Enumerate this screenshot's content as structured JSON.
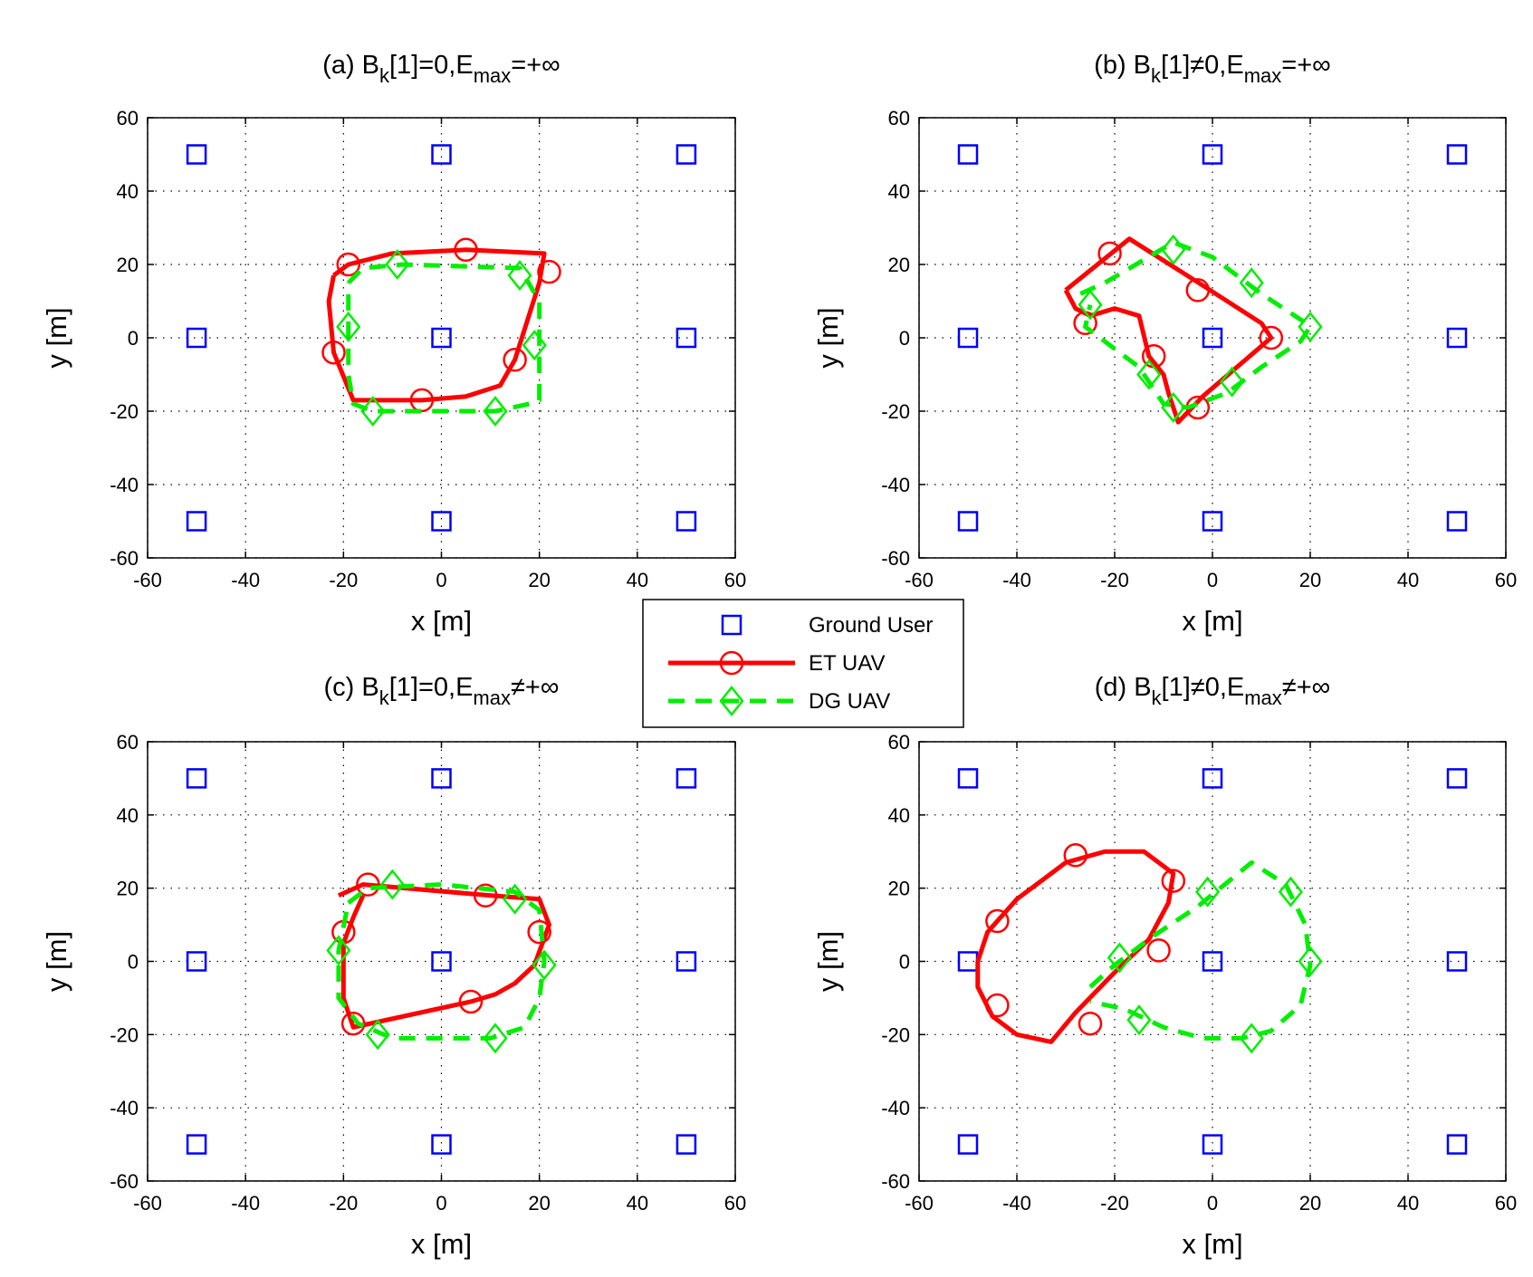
{
  "chart_data": [
    {
      "type": "line",
      "title": [
        "(a) B",
        "k",
        "[1]=0,E",
        "max",
        "=+∞"
      ],
      "xlabel": "x [m]",
      "ylabel": "y [m]",
      "xlim": [
        -60,
        60
      ],
      "ylim": [
        -60,
        60
      ],
      "xticks": [
        -60,
        -40,
        -20,
        0,
        20,
        40,
        60
      ],
      "yticks": [
        -60,
        -40,
        -20,
        0,
        20,
        40,
        60
      ],
      "grid": true,
      "series": [
        {
          "color": "#0000ff",
          "marker": "square",
          "x": [
            -50,
            0,
            50,
            -50,
            0,
            50,
            -50,
            0,
            50
          ],
          "y": [
            50,
            50,
            50,
            0,
            0,
            0,
            -50,
            -50,
            -50
          ]
        },
        {
          "color": "#ff0000",
          "line": "solid",
          "marker": "circle",
          "x": [
            -22,
            -19,
            -10,
            5,
            21,
            20,
            15,
            12,
            5,
            -4,
            -18,
            -22,
            -23,
            -22
          ],
          "y": [
            17,
            20,
            23,
            24,
            23,
            15,
            -6,
            -13,
            -16,
            -17,
            -17,
            -4,
            10,
            17
          ],
          "marker_x": [
            -19,
            5,
            22,
            15,
            -4,
            -22
          ],
          "marker_y": [
            20,
            24,
            18,
            -6,
            -17,
            -4
          ]
        },
        {
          "color": "#00ee00",
          "line": "dashed",
          "marker": "diamond",
          "x": [
            -19,
            -16,
            -8,
            16,
            20,
            20,
            20,
            18,
            11,
            -14,
            -18,
            -19,
            -19,
            -19
          ],
          "y": [
            15,
            19,
            20,
            19,
            10,
            -3,
            -17,
            -18,
            -20,
            -20,
            -18,
            -10,
            3,
            15
          ],
          "marker_x": [
            -19,
            -9,
            16,
            19,
            11,
            -14
          ],
          "marker_y": [
            3,
            20,
            17,
            -2,
            -20,
            -20
          ]
        }
      ]
    },
    {
      "type": "line",
      "title": [
        "(b) B",
        "k",
        "[1]≠0,E",
        "max",
        "=+∞"
      ],
      "xlabel": "x [m]",
      "ylabel": "y [m]",
      "xlim": [
        -60,
        60
      ],
      "ylim": [
        -60,
        60
      ],
      "xticks": [
        -60,
        -40,
        -20,
        0,
        20,
        40,
        60
      ],
      "yticks": [
        -60,
        -40,
        -20,
        0,
        20,
        40,
        60
      ],
      "grid": true,
      "series": [
        {
          "color": "#0000ff",
          "marker": "square",
          "x": [
            -50,
            0,
            50,
            -50,
            0,
            50,
            -50,
            0,
            50
          ],
          "y": [
            50,
            50,
            50,
            0,
            0,
            0,
            -50,
            -50,
            -50
          ]
        },
        {
          "color": "#ff0000",
          "line": "solid",
          "marker": "circle",
          "x": [
            -30,
            -17,
            -4,
            10,
            12,
            5,
            -2,
            -7,
            -9,
            -10,
            -13,
            -15,
            -20,
            -25,
            -28,
            -30
          ],
          "y": [
            13,
            27,
            16,
            4,
            0,
            -8,
            -16,
            -23,
            -15,
            -10,
            -5,
            6,
            8,
            6,
            8,
            13
          ],
          "marker_x": [
            -21,
            -3,
            12,
            -3,
            -12,
            -26
          ],
          "marker_y": [
            23,
            13,
            0,
            -19,
            -5,
            4
          ]
        },
        {
          "color": "#00ee00",
          "line": "dashed",
          "marker": "diamond",
          "x": [
            -27,
            -22,
            -8,
            0,
            10,
            18,
            20,
            18,
            10,
            3,
            -5,
            -10,
            -15,
            -22,
            -26,
            -25
          ],
          "y": [
            12,
            15,
            26,
            22,
            12,
            5,
            3,
            -1,
            -8,
            -15,
            -19,
            -18,
            -8,
            -1,
            3,
            9
          ],
          "marker_x": [
            -8,
            8,
            20,
            4,
            -8,
            -13,
            -25
          ],
          "marker_y": [
            24,
            15,
            3,
            -12,
            -19,
            -10,
            9
          ]
        }
      ]
    },
    {
      "type": "line",
      "title": [
        "(c) B",
        "k",
        "[1]=0,E",
        "max",
        "≠+∞"
      ],
      "xlabel": "x [m]",
      "ylabel": "y [m]",
      "xlim": [
        -60,
        60
      ],
      "ylim": [
        -60,
        60
      ],
      "xticks": [
        -60,
        -40,
        -20,
        0,
        20,
        40,
        60
      ],
      "yticks": [
        -60,
        -40,
        -20,
        0,
        20,
        40,
        60
      ],
      "grid": true,
      "series": [
        {
          "color": "#0000ff",
          "marker": "square",
          "x": [
            -50,
            0,
            50,
            -50,
            0,
            50,
            -50,
            0,
            50
          ],
          "y": [
            50,
            50,
            50,
            0,
            0,
            0,
            -50,
            -50,
            -50
          ]
        },
        {
          "color": "#ff0000",
          "line": "solid",
          "marker": "circle",
          "x": [
            -21,
            -16,
            10,
            20,
            22,
            19,
            15,
            11,
            6,
            -18,
            -20,
            -20,
            -18,
            -16
          ],
          "y": [
            18,
            21,
            18,
            17,
            10,
            -1,
            -6,
            -9,
            -11,
            -18,
            -10,
            5,
            12,
            18
          ],
          "marker_x": [
            -15,
            9,
            20,
            6,
            -18,
            -20
          ],
          "marker_y": [
            21,
            18,
            8,
            -11,
            -17,
            8
          ]
        },
        {
          "color": "#00ee00",
          "line": "dashed",
          "marker": "diamond",
          "x": [
            -19,
            -15,
            0,
            15,
            20,
            21,
            20,
            17,
            10,
            -10,
            -17,
            -21,
            -21,
            -19
          ],
          "y": [
            16,
            20,
            21,
            19,
            14,
            0,
            -10,
            -18,
            -21,
            -21,
            -17,
            -10,
            3,
            16
          ],
          "marker_x": [
            -10,
            15,
            21,
            11,
            -13,
            -21
          ],
          "marker_y": [
            21,
            17,
            -1,
            -21,
            -20,
            3
          ]
        }
      ]
    },
    {
      "type": "line",
      "title": [
        "(d) B",
        "k",
        "[1]≠0,E",
        "max",
        "≠+∞"
      ],
      "xlabel": "x [m]",
      "ylabel": "y [m]",
      "xlim": [
        -60,
        60
      ],
      "ylim": [
        -60,
        60
      ],
      "xticks": [
        -60,
        -40,
        -20,
        0,
        20,
        40,
        60
      ],
      "yticks": [
        -60,
        -40,
        -20,
        0,
        20,
        40,
        60
      ],
      "grid": true,
      "series": [
        {
          "color": "#0000ff",
          "marker": "square",
          "x": [
            -50,
            0,
            50,
            -50,
            0,
            50,
            -50,
            0,
            50
          ],
          "y": [
            50,
            50,
            50,
            0,
            0,
            0,
            -50,
            -50,
            -50
          ]
        },
        {
          "color": "#ff0000",
          "line": "solid",
          "marker": "circle",
          "x": [
            -48,
            -46,
            -40,
            -30,
            -22,
            -14,
            -8,
            -9,
            -13,
            -20,
            -28,
            -33,
            -40,
            -45,
            -48,
            -48
          ],
          "y": [
            0,
            8,
            17,
            27,
            30,
            30,
            24,
            16,
            6,
            -3,
            -14,
            -22,
            -20,
            -15,
            -7,
            0
          ],
          "marker_x": [
            -28,
            -8,
            -11,
            -25,
            -44,
            -44
          ],
          "marker_y": [
            29,
            22,
            3,
            -17,
            -12,
            11
          ]
        },
        {
          "color": "#00ee00",
          "line": "dashed",
          "marker": "diamond",
          "x": [
            -25,
            -20,
            -12,
            -3,
            8,
            15,
            19,
            20,
            18,
            12,
            6,
            -2,
            -10,
            -18,
            -25
          ],
          "y": [
            -7,
            -1,
            7,
            15,
            27,
            21,
            10,
            -1,
            -12,
            -19,
            -21,
            -21,
            -18,
            -13,
            -11
          ],
          "marker_x": [
            -19,
            -1,
            16,
            20,
            8,
            -15
          ],
          "marker_y": [
            1,
            19,
            19,
            0,
            -21,
            -16
          ]
        }
      ]
    }
  ],
  "legend": [
    {
      "name": "Ground User"
    },
    {
      "name": "ET UAV"
    },
    {
      "name": "DG UAV"
    }
  ]
}
